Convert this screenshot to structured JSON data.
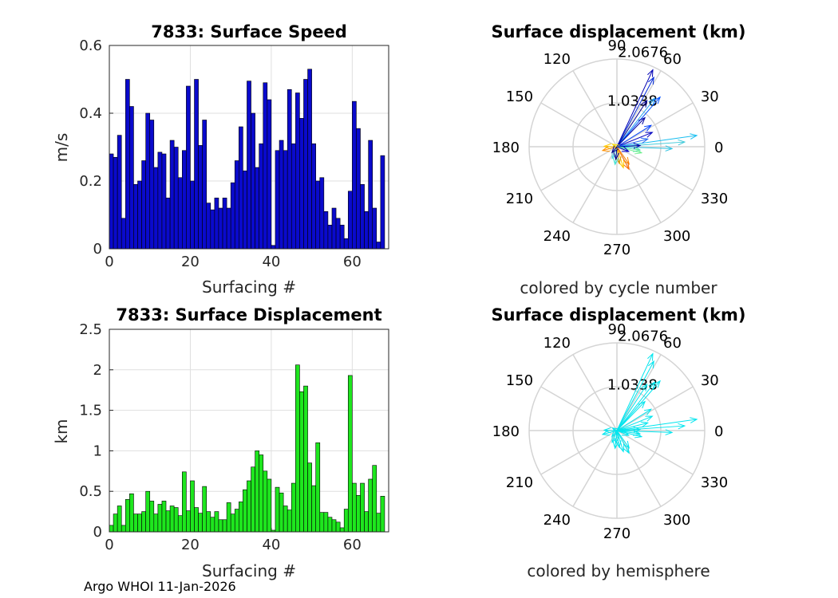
{
  "footer": "Argo WHOI 11-Jan-2026",
  "chart_data": [
    {
      "type": "bar",
      "title": "7833: Surface Speed",
      "xlabel": "Surfacing #",
      "ylabel": "m/s",
      "xlim": [
        0,
        69
      ],
      "ylim": [
        0,
        0.6
      ],
      "xticks": [
        "0",
        "20",
        "40",
        "60"
      ],
      "yticks": [
        "0",
        "0.2",
        "0.4",
        "0.6"
      ],
      "grid": true,
      "bar_color": "#0a0acc",
      "x": [
        0,
        1,
        2,
        3,
        4,
        5,
        6,
        7,
        8,
        9,
        10,
        11,
        12,
        13,
        14,
        15,
        16,
        17,
        18,
        19,
        20,
        21,
        22,
        23,
        24,
        25,
        26,
        27,
        28,
        29,
        30,
        31,
        32,
        33,
        34,
        35,
        36,
        37,
        38,
        39,
        40,
        41,
        42,
        43,
        44,
        45,
        46,
        47,
        48,
        49,
        50,
        51,
        52,
        53,
        54,
        55,
        56,
        57,
        58,
        59,
        60,
        61,
        62,
        63,
        64,
        65,
        66,
        67
      ],
      "values": [
        0.28,
        0.27,
        0.335,
        0.09,
        0.5,
        0.42,
        0.19,
        0.2,
        0.26,
        0.4,
        0.38,
        0.24,
        0.285,
        0.28,
        0.15,
        0.32,
        0.3,
        0.21,
        0.29,
        0.48,
        0.2,
        0.5,
        0.305,
        0.38,
        0.135,
        0.115,
        0.15,
        0.12,
        0.15,
        0.12,
        0.195,
        0.26,
        0.36,
        0.23,
        0.495,
        0.4,
        0.24,
        0.31,
        0.49,
        0.44,
        0.01,
        0.29,
        0.32,
        0.29,
        0.47,
        0.31,
        0.46,
        0.385,
        0.5,
        0.53,
        0.31,
        0.2,
        0.21,
        0.11,
        0.07,
        0.12,
        0.09,
        0.07,
        0.03,
        0.17,
        0.435,
        0.355,
        0.19,
        0.11,
        0.32,
        0.12,
        0.02,
        0.275
      ]
    },
    {
      "type": "bar",
      "title": "7833: Surface Displacement",
      "xlabel": "Surfacing #",
      "ylabel": "km",
      "xlim": [
        0,
        69
      ],
      "ylim": [
        0,
        2.5
      ],
      "xticks": [
        "0",
        "20",
        "40",
        "60"
      ],
      "yticks": [
        "0",
        "0.5",
        "1",
        "1.5",
        "2",
        "2.5"
      ],
      "grid": true,
      "bar_color": "#1ee61e",
      "x": [
        0,
        1,
        2,
        3,
        4,
        5,
        6,
        7,
        8,
        9,
        10,
        11,
        12,
        13,
        14,
        15,
        16,
        17,
        18,
        19,
        20,
        21,
        22,
        23,
        24,
        25,
        26,
        27,
        28,
        29,
        30,
        31,
        32,
        33,
        34,
        35,
        36,
        37,
        38,
        39,
        40,
        41,
        42,
        43,
        44,
        45,
        46,
        47,
        48,
        49,
        50,
        51,
        52,
        53,
        54,
        55,
        56,
        57,
        58,
        59,
        60,
        61,
        62,
        63,
        64,
        65,
        66,
        67
      ],
      "values": [
        0.08,
        0.22,
        0.32,
        0.08,
        0.4,
        0.47,
        0.22,
        0.22,
        0.25,
        0.5,
        0.38,
        0.22,
        0.34,
        0.38,
        0.26,
        0.32,
        0.3,
        0.2,
        0.74,
        0.26,
        0.63,
        0.3,
        0.23,
        0.56,
        0.25,
        0.18,
        0.25,
        0.15,
        0.15,
        0.36,
        0.22,
        0.28,
        0.37,
        0.52,
        0.63,
        0.8,
        1.0,
        0.95,
        0.75,
        0.65,
        0.02,
        0.55,
        0.48,
        0.32,
        0.27,
        0.6,
        2.06,
        1.73,
        1.8,
        0.85,
        0.57,
        1.1,
        0.24,
        0.24,
        0.18,
        0.15,
        0.12,
        0.05,
        0.28,
        1.93,
        0.6,
        0.45,
        0.6,
        0.25,
        0.65,
        0.82,
        0.23,
        0.44
      ]
    },
    {
      "type": "polar",
      "title": "Surface displacement (km)",
      "caption": "colored by cycle number",
      "angle_ticks": [
        "0",
        "30",
        "60",
        "90",
        "120",
        "150",
        "180",
        "210",
        "240",
        "270",
        "300",
        "330"
      ],
      "rmax": 2.0676,
      "radial_ticks": [
        "1.0338",
        "2.0676"
      ],
      "vectors": [
        {
          "angle": 65,
          "r": 2.0,
          "color": "#0000b4"
        },
        {
          "angle": 62,
          "r": 1.85,
          "color": "#0028d8"
        },
        {
          "angle": 52,
          "r": 1.45,
          "color": "#1ea0f0"
        },
        {
          "angle": 49,
          "r": 1.55,
          "color": "#0050ff"
        },
        {
          "angle": 57,
          "r": 1.3,
          "color": "#00008f"
        },
        {
          "angle": 46,
          "r": 0.95,
          "color": "#00009f"
        },
        {
          "angle": 32,
          "r": 0.95,
          "color": "#0040ff"
        },
        {
          "angle": 22,
          "r": 0.9,
          "color": "#0000bf"
        },
        {
          "angle": 8,
          "r": 1.9,
          "color": "#19bef0"
        },
        {
          "angle": 4,
          "r": 1.6,
          "color": "#3bc8d8"
        },
        {
          "angle": -2,
          "r": 1.3,
          "color": "#28c0e0"
        },
        {
          "angle": 14,
          "r": 0.75,
          "color": "#2a6cf0"
        },
        {
          "angle": 3,
          "r": 0.55,
          "color": "#0000a8"
        },
        {
          "angle": -8,
          "r": 0.55,
          "color": "#50e0b0"
        },
        {
          "angle": -14,
          "r": 0.6,
          "color": "#70f090"
        },
        {
          "angle": -22,
          "r": 0.3,
          "color": "#0000c8"
        },
        {
          "angle": -55,
          "r": 0.5,
          "color": "#ff8800"
        },
        {
          "angle": -62,
          "r": 0.6,
          "color": "#ff6a00"
        },
        {
          "angle": -73,
          "r": 0.52,
          "color": "#ffc800"
        },
        {
          "angle": -82,
          "r": 0.4,
          "color": "#d09000"
        },
        {
          "angle": -96,
          "r": 0.42,
          "color": "#40e0d0"
        },
        {
          "angle": -112,
          "r": 0.3,
          "color": "#4ad0e0"
        },
        {
          "angle": -95,
          "r": 0.3,
          "color": "#00008c"
        },
        {
          "angle": 178,
          "r": 0.3,
          "color": "#ffcc00"
        },
        {
          "angle": 195,
          "r": 0.35,
          "color": "#ff9000"
        },
        {
          "angle": 150,
          "r": 0.12,
          "color": "#ffe000"
        },
        {
          "angle": -130,
          "r": 0.18,
          "color": "#00008c"
        }
      ]
    },
    {
      "type": "polar",
      "title": "Surface displacement (km)",
      "caption": "colored by hemisphere",
      "angle_ticks": [
        "0",
        "30",
        "60",
        "90",
        "120",
        "150",
        "180",
        "210",
        "240",
        "270",
        "300",
        "330"
      ],
      "rmax": 2.0676,
      "radial_ticks": [
        "1.0338",
        "2.0676"
      ],
      "series_color": "#00e5ee",
      "vectors": [
        {
          "angle": 65,
          "r": 2.0
        },
        {
          "angle": 62,
          "r": 1.85
        },
        {
          "angle": 52,
          "r": 1.45
        },
        {
          "angle": 49,
          "r": 1.55
        },
        {
          "angle": 57,
          "r": 1.3
        },
        {
          "angle": 46,
          "r": 0.95
        },
        {
          "angle": 32,
          "r": 0.95
        },
        {
          "angle": 22,
          "r": 0.9
        },
        {
          "angle": 8,
          "r": 1.9
        },
        {
          "angle": 4,
          "r": 1.6
        },
        {
          "angle": -2,
          "r": 1.3
        },
        {
          "angle": 14,
          "r": 0.75
        },
        {
          "angle": 3,
          "r": 0.55
        },
        {
          "angle": -8,
          "r": 0.55
        },
        {
          "angle": -14,
          "r": 0.6
        },
        {
          "angle": -22,
          "r": 0.3
        },
        {
          "angle": -55,
          "r": 0.5
        },
        {
          "angle": -62,
          "r": 0.6
        },
        {
          "angle": -73,
          "r": 0.52
        },
        {
          "angle": -82,
          "r": 0.4
        },
        {
          "angle": -96,
          "r": 0.42
        },
        {
          "angle": -112,
          "r": 0.3
        },
        {
          "angle": -95,
          "r": 0.3
        },
        {
          "angle": 178,
          "r": 0.3
        },
        {
          "angle": 195,
          "r": 0.35
        },
        {
          "angle": 150,
          "r": 0.12
        },
        {
          "angle": -130,
          "r": 0.18
        }
      ]
    }
  ]
}
